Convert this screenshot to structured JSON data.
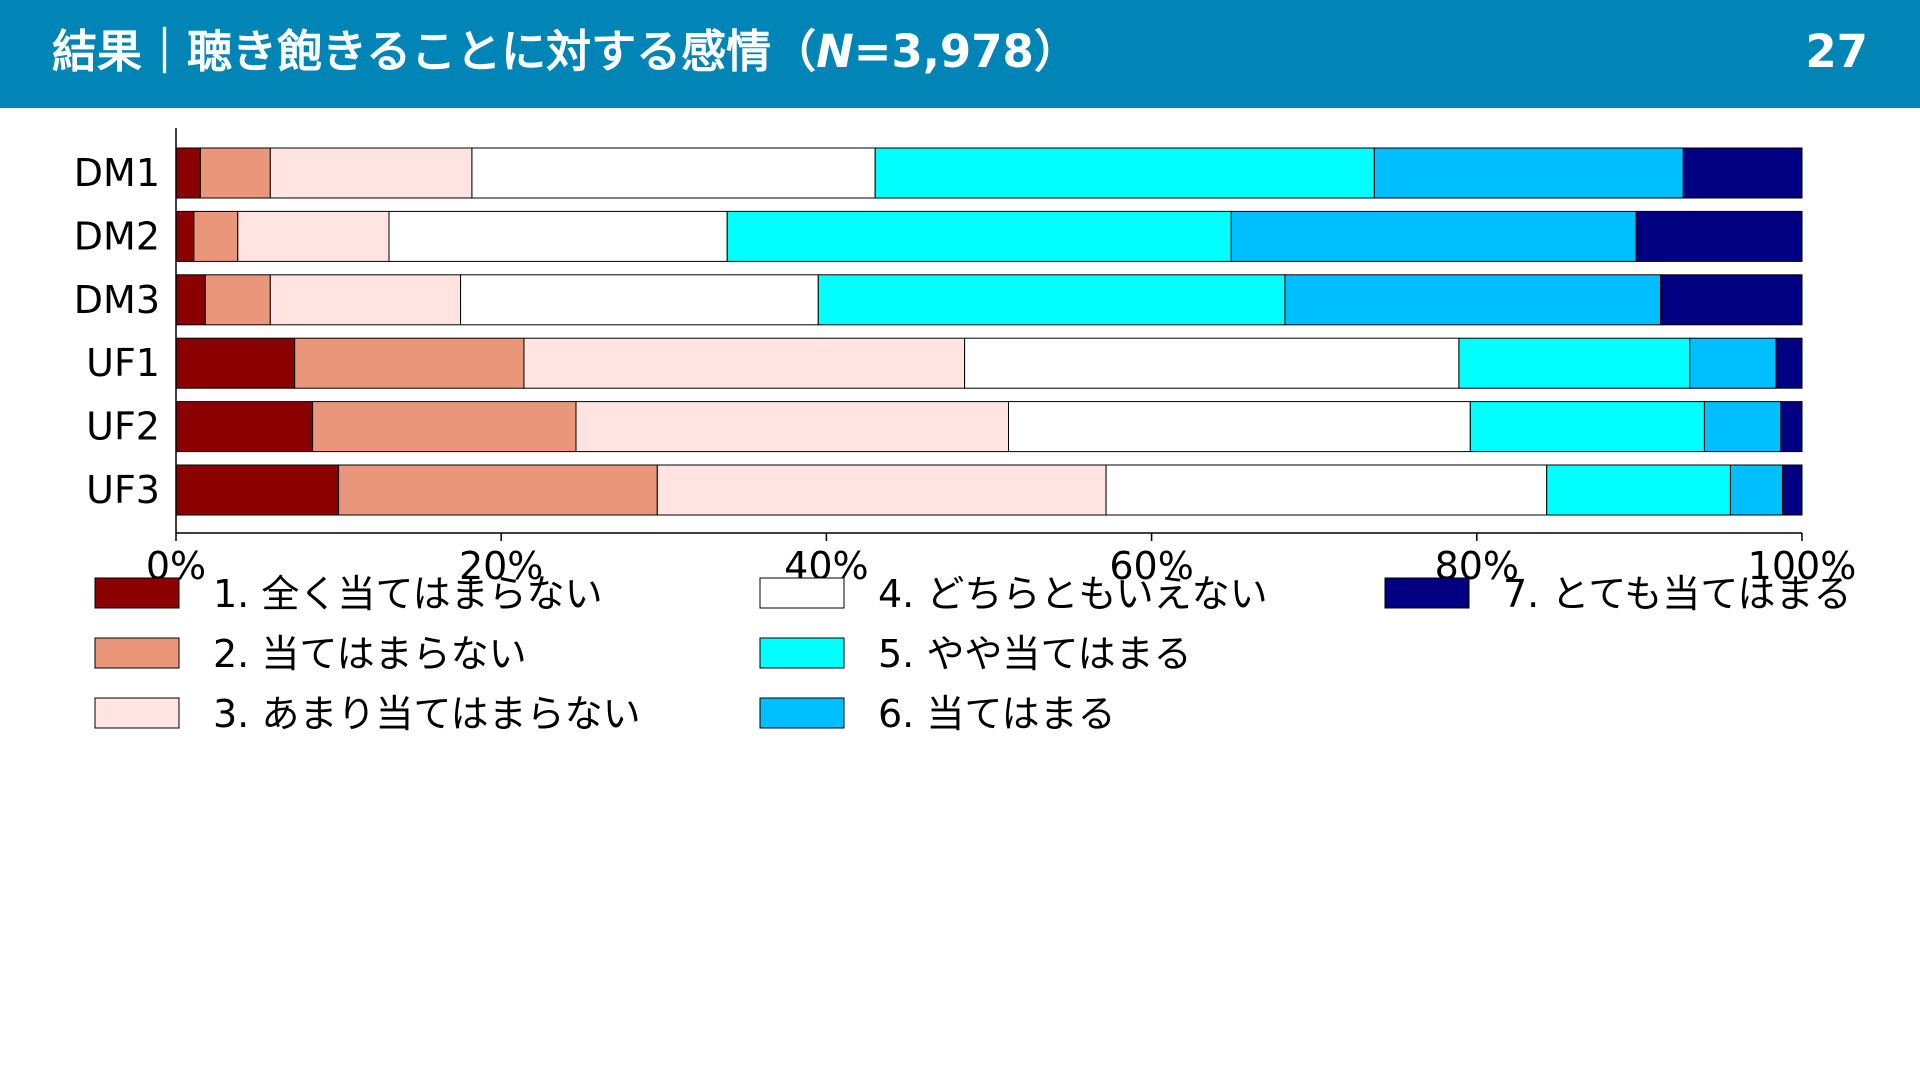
{
  "header": {
    "title_main": "結果｜聴き飽きることに対する感情（",
    "title_n": "N",
    "title_rest": "=3,978）",
    "page_number": "27",
    "background_color": "#0085b6"
  },
  "chart_data": {
    "type": "bar",
    "orientation": "horizontal",
    "stacked": true,
    "categories": [
      "DM1",
      "DM2",
      "DM3",
      "UF1",
      "UF2",
      "UF3"
    ],
    "xlim": [
      0,
      100
    ],
    "x_ticks": [
      "0%",
      "20%",
      "40%",
      "60%",
      "80%",
      "100%"
    ],
    "grid": false,
    "legend_position": "bottom",
    "series": [
      {
        "name": "1. 全く当てはまらない",
        "color": "#8b0000",
        "values": [
          1.5,
          1.1,
          1.8,
          7.3,
          8.4,
          10.0
        ]
      },
      {
        "name": "2. 当てはまらない",
        "color": "#e9967a",
        "values": [
          4.3,
          2.7,
          4.0,
          14.1,
          16.2,
          19.6
        ]
      },
      {
        "name": "3. あまり当てはまらない",
        "color": "#ffe4e1",
        "values": [
          12.4,
          9.3,
          11.7,
          27.1,
          26.6,
          27.6
        ]
      },
      {
        "name": "4. どちらともいえない",
        "color": "#ffffff",
        "values": [
          24.8,
          20.8,
          22.0,
          30.4,
          28.4,
          27.1
        ]
      },
      {
        "name": "5. やや当てはまる",
        "color": "#00ffff",
        "values": [
          30.7,
          31.0,
          28.7,
          14.2,
          14.4,
          11.3
        ]
      },
      {
        "name": "6. 当てはまる",
        "color": "#00bfff",
        "values": [
          19.0,
          24.9,
          23.1,
          5.3,
          4.7,
          3.2
        ]
      },
      {
        "name": "7. とても当てはまる",
        "color": "#000080",
        "values": [
          7.3,
          10.2,
          8.7,
          1.6,
          1.3,
          1.2
        ]
      }
    ]
  }
}
